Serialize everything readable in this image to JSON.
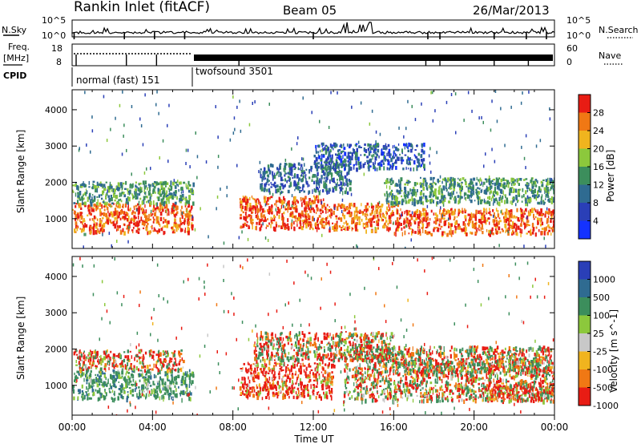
{
  "header": {
    "station": "Rankin Inlet (fitACF)",
    "beam": "Beam 05",
    "date": "26/Mar/2013"
  },
  "strip": {
    "nsky_label": "N.Sky",
    "nsky_ticks": [
      "10^5",
      "10^0"
    ],
    "nsearch_label": "N.Search",
    "nsearch_ticks": [
      "10^5",
      "10^0"
    ],
    "freq_label": "Freq.",
    "freq_unit": "[MHz]",
    "freq_ticks": [
      "18",
      "8"
    ],
    "nave_label": "Nave",
    "nave_ticks": [
      "60",
      "0"
    ],
    "cpid_label": "CPID",
    "cpid_modes": [
      {
        "label": "normal (fast) 151",
        "start_hour": 0,
        "end_hour": 6
      },
      {
        "label": "twofsound 3501",
        "start_hour": 6,
        "end_hour": 24
      }
    ]
  },
  "chart_data": [
    {
      "type": "heatmap",
      "quantity": "Power",
      "ylabel": "Slant Range [km]",
      "xlabel": "",
      "xlim": [
        0,
        24
      ],
      "ylim": [
        180,
        4550
      ],
      "yticks": [
        1000,
        2000,
        3000,
        4000
      ],
      "colorbar": {
        "label": "Power [dB]",
        "ticks": [
          "28",
          "24",
          "20",
          "16",
          "12",
          "8",
          "4"
        ],
        "levels": [
          {
            "value": 0,
            "color": "#1432ff"
          },
          {
            "value": 4,
            "color": "#2a3fb7"
          },
          {
            "value": 8,
            "color": "#2f6b91"
          },
          {
            "value": 12,
            "color": "#3c8e5c"
          },
          {
            "value": 16,
            "color": "#8cc83c"
          },
          {
            "value": 20,
            "color": "#f0b41e"
          },
          {
            "value": 24,
            "color": "#f07814"
          },
          {
            "value": 28,
            "color": "#e81c14"
          }
        ]
      },
      "echo_bands": [
        {
          "t0": 0.0,
          "t1": 6.0,
          "r0": 650,
          "r1": 1450,
          "level": 28
        },
        {
          "t0": 0.0,
          "t1": 6.0,
          "r0": 1450,
          "r1": 2050,
          "level": 14
        },
        {
          "t0": 8.3,
          "t1": 12.5,
          "r0": 750,
          "r1": 1650,
          "level": 28
        },
        {
          "t0": 12.5,
          "t1": 16.2,
          "r0": 700,
          "r1": 1450,
          "level": 26
        },
        {
          "t0": 9.3,
          "t1": 13.8,
          "r0": 1750,
          "r1": 2550,
          "level": 10
        },
        {
          "t0": 15.5,
          "t1": 24.0,
          "r0": 1450,
          "r1": 2150,
          "level": 14
        },
        {
          "t0": 16.0,
          "t1": 24.0,
          "r0": 600,
          "r1": 1300,
          "level": 27
        },
        {
          "t0": 12.0,
          "t1": 17.5,
          "r0": 2400,
          "r1": 3100,
          "level": 8
        }
      ]
    },
    {
      "type": "heatmap",
      "quantity": "Velocity",
      "ylabel": "Slant Range [km]",
      "xlabel": "Time UT",
      "xlim": [
        0,
        24
      ],
      "ylim": [
        180,
        4550
      ],
      "yticks": [
        1000,
        2000,
        3000,
        4000
      ],
      "xticks": [
        "00:00",
        "04:00",
        "08:00",
        "12:00",
        "16:00",
        "20:00",
        "00:00"
      ],
      "colorbar": {
        "label": "Velocity [m s^-1]",
        "ticks": [
          "1000",
          "500",
          "100",
          "25",
          "-25",
          "-100",
          "-500",
          "-1000"
        ],
        "levels": [
          {
            "value": 1000,
            "color": "#2a3fb7"
          },
          {
            "value": 500,
            "color": "#2f6b91"
          },
          {
            "value": 100,
            "color": "#3c8e5c"
          },
          {
            "value": 25,
            "color": "#8cc83c"
          },
          {
            "value": 0,
            "color": "#c8c8c8"
          },
          {
            "value": -25,
            "color": "#f0b41e"
          },
          {
            "value": -100,
            "color": "#f07814"
          },
          {
            "value": -500,
            "color": "#e81c14"
          }
        ]
      },
      "echo_bands": [
        {
          "t0": 0.0,
          "t1": 6.0,
          "r0": 650,
          "r1": 1450,
          "level": 300
        },
        {
          "t0": 0.0,
          "t1": 5.5,
          "r0": 1450,
          "r1": 2000,
          "level": -60
        },
        {
          "t0": 8.3,
          "t1": 13.0,
          "r0": 700,
          "r1": 1650,
          "level": -200
        },
        {
          "t0": 9.0,
          "t1": 16.0,
          "r0": 1700,
          "r1": 2500,
          "level": 0
        },
        {
          "t0": 13.5,
          "t1": 24.0,
          "r0": 600,
          "r1": 2100,
          "level": 0
        },
        {
          "t0": 16.5,
          "t1": 24.0,
          "r0": 1400,
          "r1": 1750,
          "level": 40
        },
        {
          "t0": 20.5,
          "t1": 24.0,
          "r0": 600,
          "r1": 1100,
          "level": -150
        }
      ]
    }
  ]
}
